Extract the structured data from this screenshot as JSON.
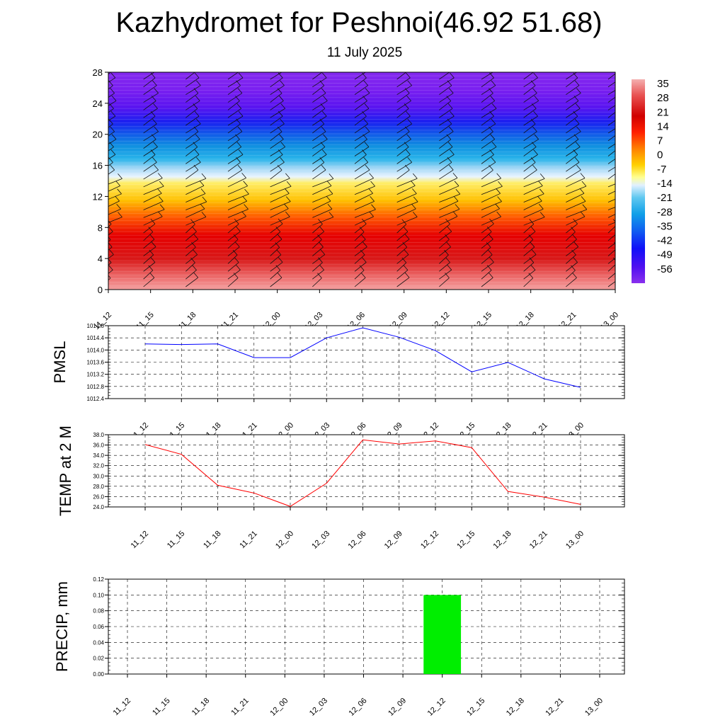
{
  "header": {
    "title": "Kazhydromet for Peshnoi(46.92 51.68)",
    "date": "11 July 2025"
  },
  "colors": {
    "pmsl_line": "#0000ff",
    "temp_line": "#ff0000",
    "precip_bar": "#00ee00"
  },
  "chart_data": [
    {
      "type": "heatmap",
      "title": "",
      "categories": [
        "11_12",
        "11_15",
        "11_18",
        "11_21",
        "12_00",
        "12_03",
        "12_06",
        "12_09",
        "12_12",
        "12_15",
        "12_18",
        "12_21",
        "13_00"
      ],
      "y_ticks": [
        0,
        4,
        8,
        12,
        16,
        20,
        24,
        28
      ],
      "ylim": [
        0,
        28
      ],
      "colorbar_labels": [
        "35",
        "28",
        "21",
        "14",
        "7",
        "0",
        "-7",
        "-14",
        "-21",
        "-28",
        "-35",
        "-42",
        "-49",
        "-56"
      ],
      "colorbar_range": [
        -60,
        38
      ],
      "wind_barbs": true
    },
    {
      "type": "line",
      "ylabel": "PMSL",
      "categories": [
        "11_12",
        "11_15",
        "11_18",
        "11_21",
        "12_00",
        "12_03",
        "12_06",
        "12_09",
        "12_12",
        "12_15",
        "12_18",
        "12_21",
        "13_00"
      ],
      "values": [
        1014.2,
        1014.18,
        1014.2,
        1013.75,
        1013.75,
        1014.4,
        1014.73,
        1014.42,
        1013.98,
        1013.28,
        1013.59,
        1013.05,
        1012.77
      ],
      "ylim": [
        1012.4,
        1014.8
      ],
      "y_ticks": [
        "1012.4",
        "1012.8",
        "1013.2",
        "1013.6",
        "1014.0",
        "1014.4",
        "1014.8"
      ]
    },
    {
      "type": "line",
      "ylabel": "TEMP at 2 M",
      "categories": [
        "11_12",
        "11_15",
        "11_18",
        "11_21",
        "12_00",
        "12_03",
        "12_06",
        "12_09",
        "12_12",
        "12_15",
        "12_18",
        "12_21",
        "13_00"
      ],
      "values": [
        36.1,
        34.2,
        28.2,
        26.7,
        24.1,
        28.6,
        37.0,
        36.2,
        36.8,
        35.5,
        27.0,
        25.9,
        24.5
      ],
      "ylim": [
        24,
        38
      ],
      "y_ticks": [
        "24.0",
        "26.0",
        "28.0",
        "30.0",
        "32.0",
        "34.0",
        "36.0",
        "38.0"
      ]
    },
    {
      "type": "bar",
      "ylabel": "PRECIP, mm",
      "categories": [
        "11_12",
        "11_15",
        "11_18",
        "11_21",
        "12_00",
        "12_03",
        "12_06",
        "12_09",
        "12_12",
        "12_15",
        "12_18",
        "12_21",
        "13_00"
      ],
      "values": [
        0,
        0,
        0,
        0,
        0,
        0,
        0,
        0,
        0.1,
        0,
        0,
        0,
        0
      ],
      "ylim": [
        0,
        0.12
      ],
      "y_ticks": [
        "0.00",
        "0.02",
        "0.04",
        "0.06",
        "0.08",
        "0.10",
        "0.12"
      ]
    }
  ]
}
